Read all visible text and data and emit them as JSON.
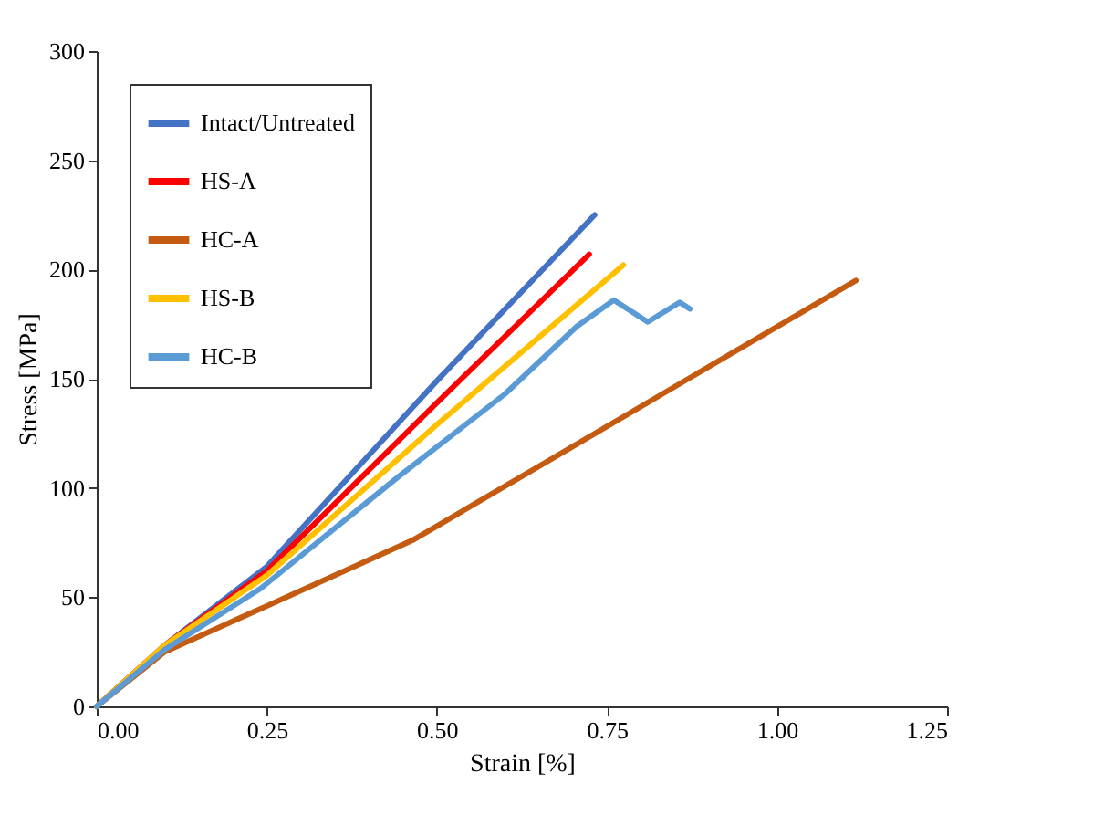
{
  "chart_data": {
    "type": "line",
    "xlabel": "Strain [%]",
    "ylabel": "Stress [MPa]",
    "xlim": [
      0,
      1.25
    ],
    "xticks": [
      {
        "value": 0,
        "label": "0.00"
      },
      {
        "value": 0.25,
        "label": "0.25"
      },
      {
        "value": 0.5,
        "label": "0.50"
      },
      {
        "value": 0.75,
        "label": "0.75"
      },
      {
        "value": 1,
        "label": "1.00"
      },
      {
        "value": 1.25,
        "label": "1.25"
      }
    ],
    "ylim": [
      0,
      300
    ],
    "yticks": [
      0,
      50,
      100,
      150,
      200,
      250,
      300
    ],
    "legend": "top left",
    "grid": false,
    "series": [
      {
        "name": "Intact/Untreated",
        "color": "#4472c4",
        "x": [
          0,
          0.1,
          0.25,
          0.5,
          0.732
        ],
        "values": [
          0,
          28,
          64,
          149,
          225
        ]
      },
      {
        "name": "HS-A",
        "color": "#ff0000",
        "x": [
          0,
          0.1,
          0.25,
          0.5,
          0.724
        ],
        "values": [
          0,
          28,
          62,
          139,
          207
        ]
      },
      {
        "name": "HC-A",
        "color": "#c55a11",
        "x": [
          0,
          0.1,
          0.25,
          0.464,
          0.7,
          1.116
        ],
        "values": [
          0,
          25,
          46,
          76,
          119,
          195
        ]
      },
      {
        "name": "HS-B",
        "color": "#ffc000",
        "x": [
          0,
          0.1,
          0.25,
          0.5,
          0.774
        ],
        "values": [
          0,
          28,
          60,
          129,
          202
        ]
      },
      {
        "name": "HC-B",
        "color": "#5b9bd5",
        "x": [
          0,
          0.1,
          0.241,
          0.443,
          0.6,
          0.706,
          0.76,
          0.81,
          0.857,
          0.872
        ],
        "values": [
          0,
          26,
          54,
          105,
          143,
          174,
          186,
          176,
          185,
          182
        ]
      }
    ]
  }
}
